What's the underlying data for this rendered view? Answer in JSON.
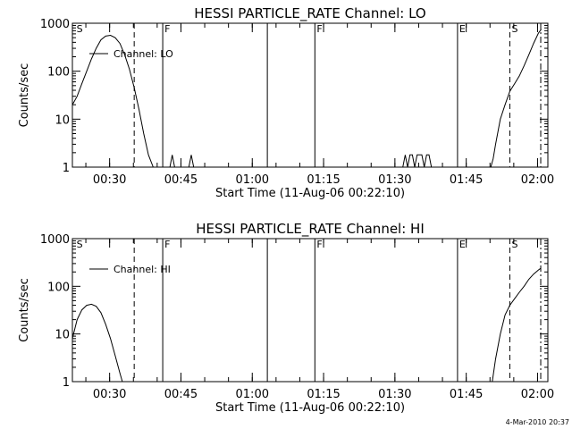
{
  "chart_data": [
    {
      "type": "line",
      "title": "HESSI PARTICLE_RATE Channel: LO",
      "xlabel": "Start Time (11-Aug-06 00:22:10)",
      "ylabel": "Counts/sec",
      "y_scale": "log",
      "ylim": [
        1,
        1000
      ],
      "y_ticks": [
        1,
        10,
        100,
        1000
      ],
      "y_tick_labels": [
        "1",
        "10",
        "100",
        "1000"
      ],
      "x_unit": "minutes since 00:22:10",
      "xlim": [
        0,
        100
      ],
      "x_ticks": [
        7.83,
        22.83,
        37.83,
        52.83,
        67.83,
        82.83,
        97.83
      ],
      "x_tick_labels": [
        "00:30",
        "00:45",
        "01:00",
        "01:15",
        "01:30",
        "01:45",
        "02:00"
      ],
      "legend": {
        "label": "Channel: LO",
        "position": "top-left"
      },
      "markers": [
        {
          "t": 0.5,
          "label": "S",
          "style": "none"
        },
        {
          "t": 19,
          "label": "F",
          "style": "solid"
        },
        {
          "t": 41,
          "label": "",
          "style": "solid"
        },
        {
          "t": 51,
          "label": "F",
          "style": "solid"
        },
        {
          "t": 81,
          "label": "E",
          "style": "solid"
        },
        {
          "t": 13,
          "label": "",
          "style": "dashed"
        },
        {
          "t": 92,
          "label": "S",
          "style": "dashed"
        },
        {
          "t": 98.5,
          "label": "",
          "style": "dashdot"
        }
      ],
      "series": [
        {
          "name": "Channel: LO",
          "segments": [
            [
              [
                0,
                20
              ],
              [
                1,
                30
              ],
              [
                2,
                55
              ],
              [
                3,
                100
              ],
              [
                4,
                180
              ],
              [
                5,
                300
              ],
              [
                6,
                450
              ],
              [
                7,
                540
              ],
              [
                8,
                560
              ],
              [
                9,
                500
              ],
              [
                10,
                380
              ],
              [
                11,
                220
              ],
              [
                12,
                110
              ],
              [
                13,
                45
              ],
              [
                14,
                16
              ],
              [
                15,
                5
              ],
              [
                16,
                1.8
              ],
              [
                17,
                1
              ]
            ],
            [
              [
                20.5,
                1
              ],
              [
                21,
                1.8
              ],
              [
                21.5,
                1
              ]
            ],
            [
              [
                24.5,
                1
              ],
              [
                25,
                1.8
              ],
              [
                25.5,
                1
              ]
            ],
            [
              [
                69.5,
                1
              ],
              [
                70,
                1.8
              ],
              [
                70.5,
                1
              ],
              [
                71,
                1.8
              ],
              [
                71.5,
                1.8
              ],
              [
                72,
                1
              ],
              [
                72.5,
                1.8
              ],
              [
                73,
                1.8
              ],
              [
                73.5,
                1.8
              ],
              [
                74,
                1
              ],
              [
                74.5,
                1.8
              ],
              [
                75,
                1.8
              ],
              [
                75.5,
                1
              ]
            ],
            [
              [
                88,
                1
              ],
              [
                88.5,
                1.5
              ],
              [
                89,
                3
              ],
              [
                90,
                10
              ],
              [
                91,
                20
              ],
              [
                92,
                38
              ],
              [
                93,
                55
              ],
              [
                94,
                80
              ],
              [
                95,
                130
              ],
              [
                96,
                220
              ],
              [
                97,
                380
              ],
              [
                98,
                620
              ],
              [
                98.6,
                750
              ]
            ]
          ]
        }
      ]
    },
    {
      "type": "line",
      "title": "HESSI PARTICLE_RATE Channel: HI",
      "xlabel": "Start Time (11-Aug-06 00:22:10)",
      "ylabel": "Counts/sec",
      "y_scale": "log",
      "ylim": [
        1,
        1000
      ],
      "y_ticks": [
        1,
        10,
        100,
        1000
      ],
      "y_tick_labels": [
        "1",
        "10",
        "100",
        "1000"
      ],
      "x_unit": "minutes since 00:22:10",
      "xlim": [
        0,
        100
      ],
      "x_ticks": [
        7.83,
        22.83,
        37.83,
        52.83,
        67.83,
        82.83,
        97.83
      ],
      "x_tick_labels": [
        "00:30",
        "00:45",
        "01:00",
        "01:15",
        "01:30",
        "01:45",
        "02:00"
      ],
      "legend": {
        "label": "Channel: HI",
        "position": "top-left"
      },
      "markers": [
        {
          "t": 0.5,
          "label": "S",
          "style": "none"
        },
        {
          "t": 19,
          "label": "F",
          "style": "solid"
        },
        {
          "t": 41,
          "label": "",
          "style": "solid"
        },
        {
          "t": 51,
          "label": "F",
          "style": "solid"
        },
        {
          "t": 81,
          "label": "E",
          "style": "solid"
        },
        {
          "t": 13,
          "label": "",
          "style": "dashed"
        },
        {
          "t": 92,
          "label": "S",
          "style": "dashed"
        },
        {
          "t": 98.5,
          "label": "",
          "style": "dashdot"
        }
      ],
      "series": [
        {
          "name": "Channel: HI",
          "segments": [
            [
              [
                0,
                8
              ],
              [
                1,
                20
              ],
              [
                2,
                32
              ],
              [
                3,
                40
              ],
              [
                4,
                42
              ],
              [
                5,
                38
              ],
              [
                6,
                28
              ],
              [
                7,
                16
              ],
              [
                8,
                8
              ],
              [
                9,
                3.5
              ],
              [
                10,
                1.5
              ],
              [
                10.5,
                1
              ]
            ],
            [
              [
                88.3,
                1
              ],
              [
                89,
                3
              ],
              [
                90,
                10
              ],
              [
                91,
                25
              ],
              [
                92,
                40
              ],
              [
                93,
                55
              ],
              [
                94,
                75
              ],
              [
                95,
                100
              ],
              [
                96,
                140
              ],
              [
                97,
                180
              ],
              [
                98,
                220
              ],
              [
                98.5,
                240
              ]
            ]
          ]
        }
      ]
    }
  ],
  "footer": {
    "timestamp": "4-Mar-2010 20:37"
  }
}
